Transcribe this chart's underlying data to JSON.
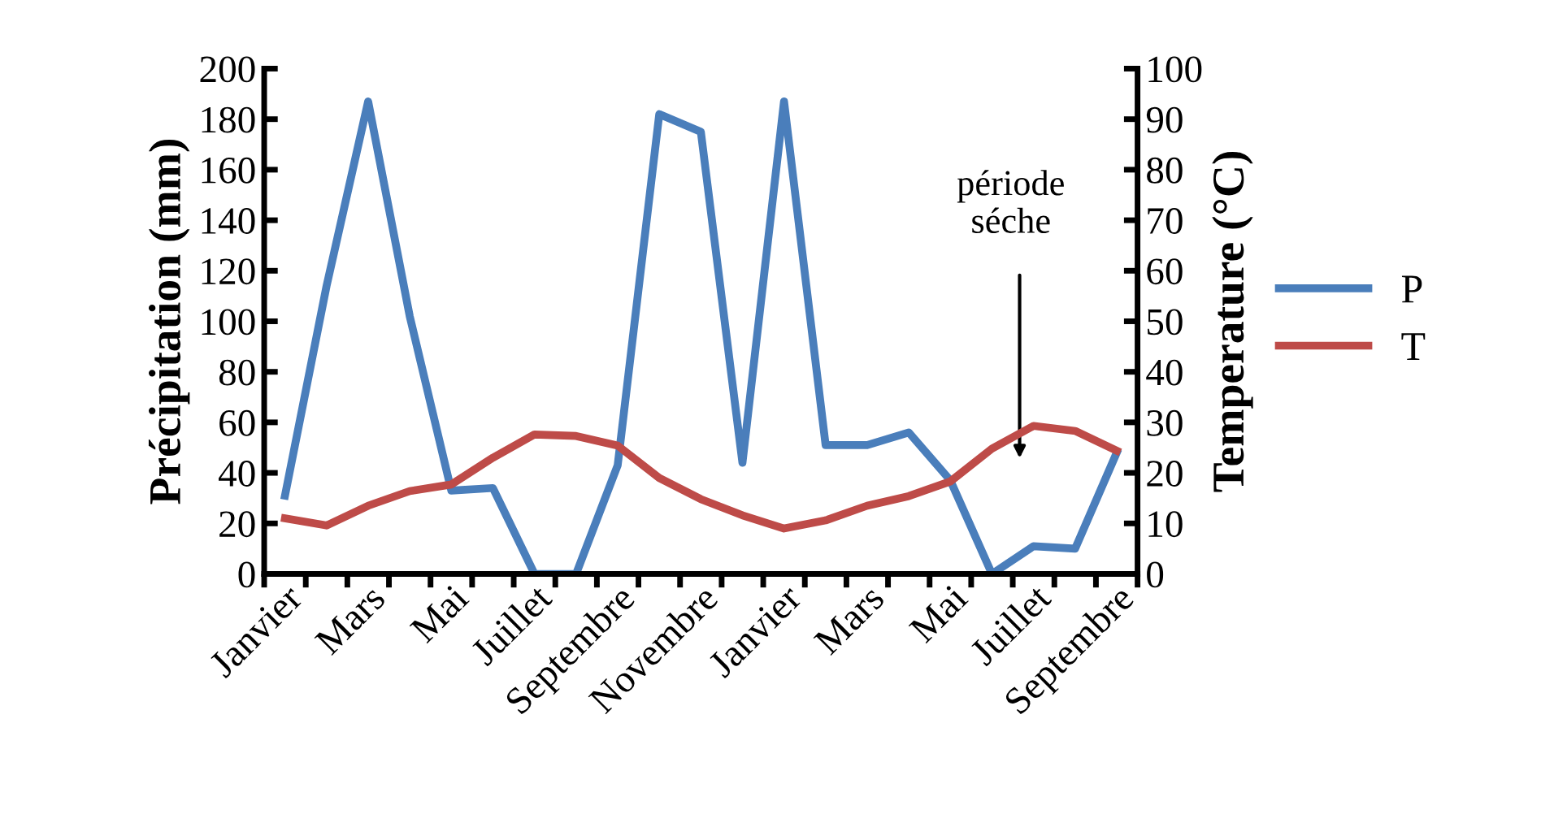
{
  "chart_data": {
    "type": "line",
    "ylabel": "Précipitation (mm)",
    "y2label": "Temperature (°C)",
    "categories": [
      "Janvier",
      null,
      "Mars",
      null,
      "Mai",
      null,
      "Juillet",
      null,
      "Septembre",
      null,
      "Novembre",
      null,
      "Janvier",
      null,
      "Mars",
      null,
      "Mai",
      null,
      "Juillet",
      null,
      "Septembre"
    ],
    "series": [
      {
        "name": "P",
        "color": "#4a7ebb",
        "values": [
          31,
          114,
          187,
          102,
          33,
          34,
          0,
          0,
          43,
          182,
          175,
          44,
          187,
          51,
          51,
          56,
          37,
          0,
          11,
          10,
          48
        ]
      },
      {
        "name": "T",
        "color": "#be4b48",
        "axis": "y2",
        "values": [
          11,
          9.6,
          13.5,
          16.4,
          17.7,
          23,
          27.6,
          27.3,
          25.4,
          19,
          14.8,
          11.6,
          9,
          10.6,
          13.5,
          15.4,
          18.3,
          24.8,
          29.3,
          28.3,
          24.4
        ]
      }
    ],
    "ylim": [
      0,
      200
    ],
    "yticks": [
      0,
      20,
      40,
      60,
      80,
      100,
      120,
      140,
      160,
      180,
      200
    ],
    "y2lim": [
      0,
      100
    ],
    "y2ticks": [
      0,
      10,
      20,
      30,
      40,
      50,
      60,
      70,
      80,
      90,
      100
    ],
    "annotations": [
      "période\nséche"
    ],
    "legend": "right",
    "grid": false,
    "marker": "none",
    "line_style": "solid"
  }
}
